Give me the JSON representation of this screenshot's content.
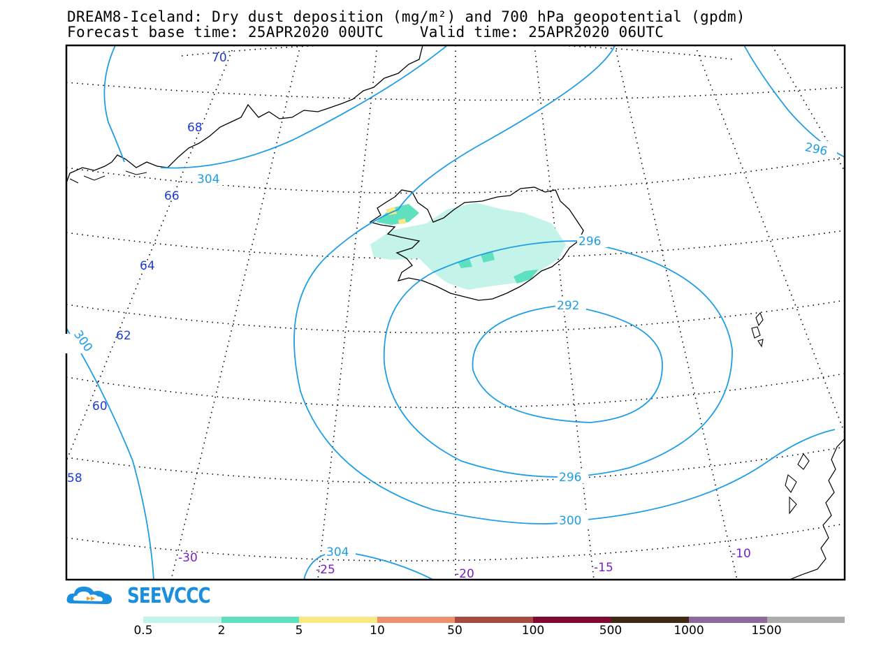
{
  "title": {
    "line1": "DREAM8-Iceland: Dry dust deposition (mg/m²) and 700 hPa geopotential (gpdm)",
    "line2": "Forecast base time: 25APR2020 00UTC    Valid time: 25APR2020 06UTC"
  },
  "map": {
    "latitude_labels": [
      "70",
      "68",
      "66",
      "64",
      "62",
      "60",
      "58"
    ],
    "longitude_labels": [
      "-30",
      "-25",
      "-20",
      "-15",
      "-10"
    ],
    "contour_labels": [
      "304",
      "296",
      "296",
      "292",
      "300",
      "296",
      "300",
      "304"
    ],
    "colors": {
      "contour": "#1e9ee6",
      "latitude_label": "#1f3bd6",
      "longitude_label": "#7a1fc0",
      "coast": "#000000"
    }
  },
  "brand": {
    "name": "SEEVCCC",
    "icon": "cloud-logo-icon",
    "color": "#1a8fe0"
  },
  "legend": {
    "labels": [
      "0.5",
      "2",
      "5",
      "10",
      "50",
      "100",
      "500",
      "1000",
      "1500"
    ],
    "colors": [
      "#c4f3ea",
      "#5fe0bf",
      "#f9e884",
      "#ed9070",
      "#a54b42",
      "#7e0a33",
      "#3e2a15",
      "#8d6a9a",
      "#acacac"
    ]
  }
}
